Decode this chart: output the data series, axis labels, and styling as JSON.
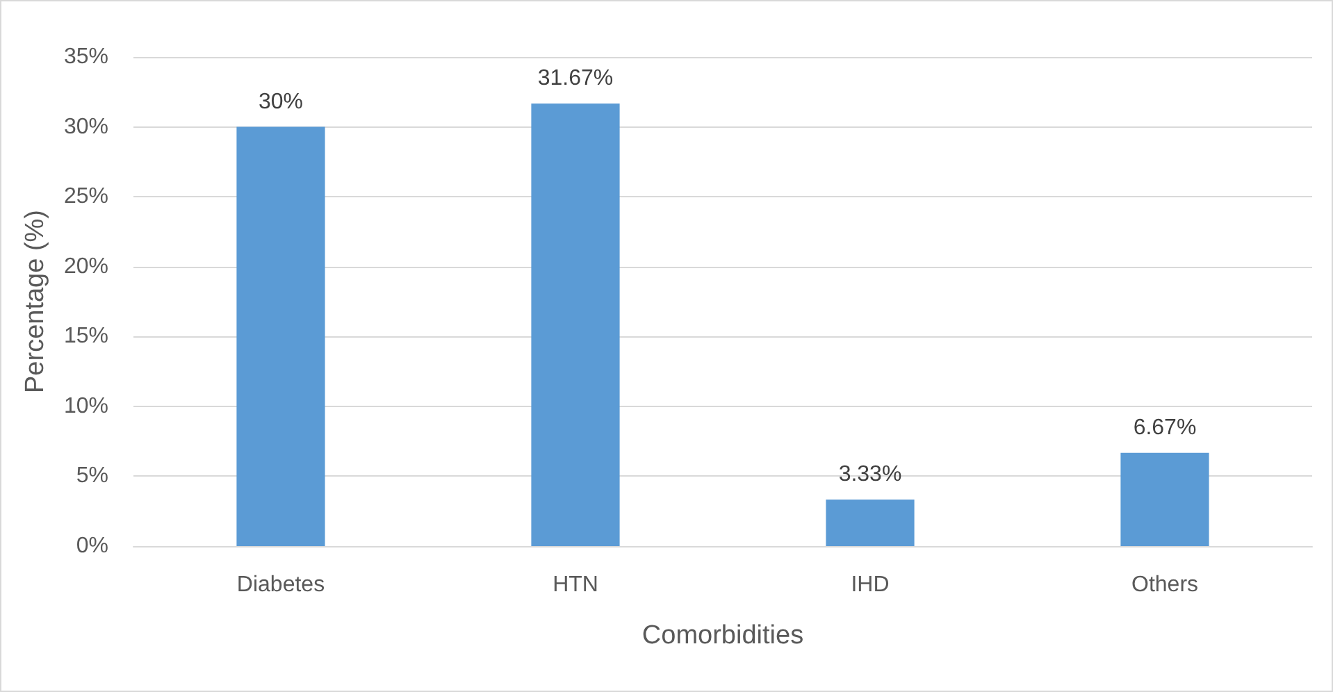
{
  "chart_data": {
    "type": "bar",
    "xlabel": "Comorbidities",
    "ylabel": "Percentage (%)",
    "categories": [
      "Diabetes",
      "HTN",
      "IHD",
      "Others"
    ],
    "values": [
      30,
      31.67,
      3.33,
      6.67
    ],
    "value_labels": [
      "30%",
      "31.67%",
      "3.33%",
      "6.67%"
    ],
    "color": "#5b9bd5",
    "ylim": [
      0,
      35
    ],
    "yticks": [
      {
        "value": 0,
        "label": "0%"
      },
      {
        "value": 5,
        "label": "5%"
      },
      {
        "value": 10,
        "label": "10%"
      },
      {
        "value": 15,
        "label": "15%"
      },
      {
        "value": 20,
        "label": "20%"
      },
      {
        "value": 25,
        "label": "25%"
      },
      {
        "value": 30,
        "label": "30%"
      },
      {
        "value": 35,
        "label": "35%"
      }
    ],
    "grid": "y"
  }
}
